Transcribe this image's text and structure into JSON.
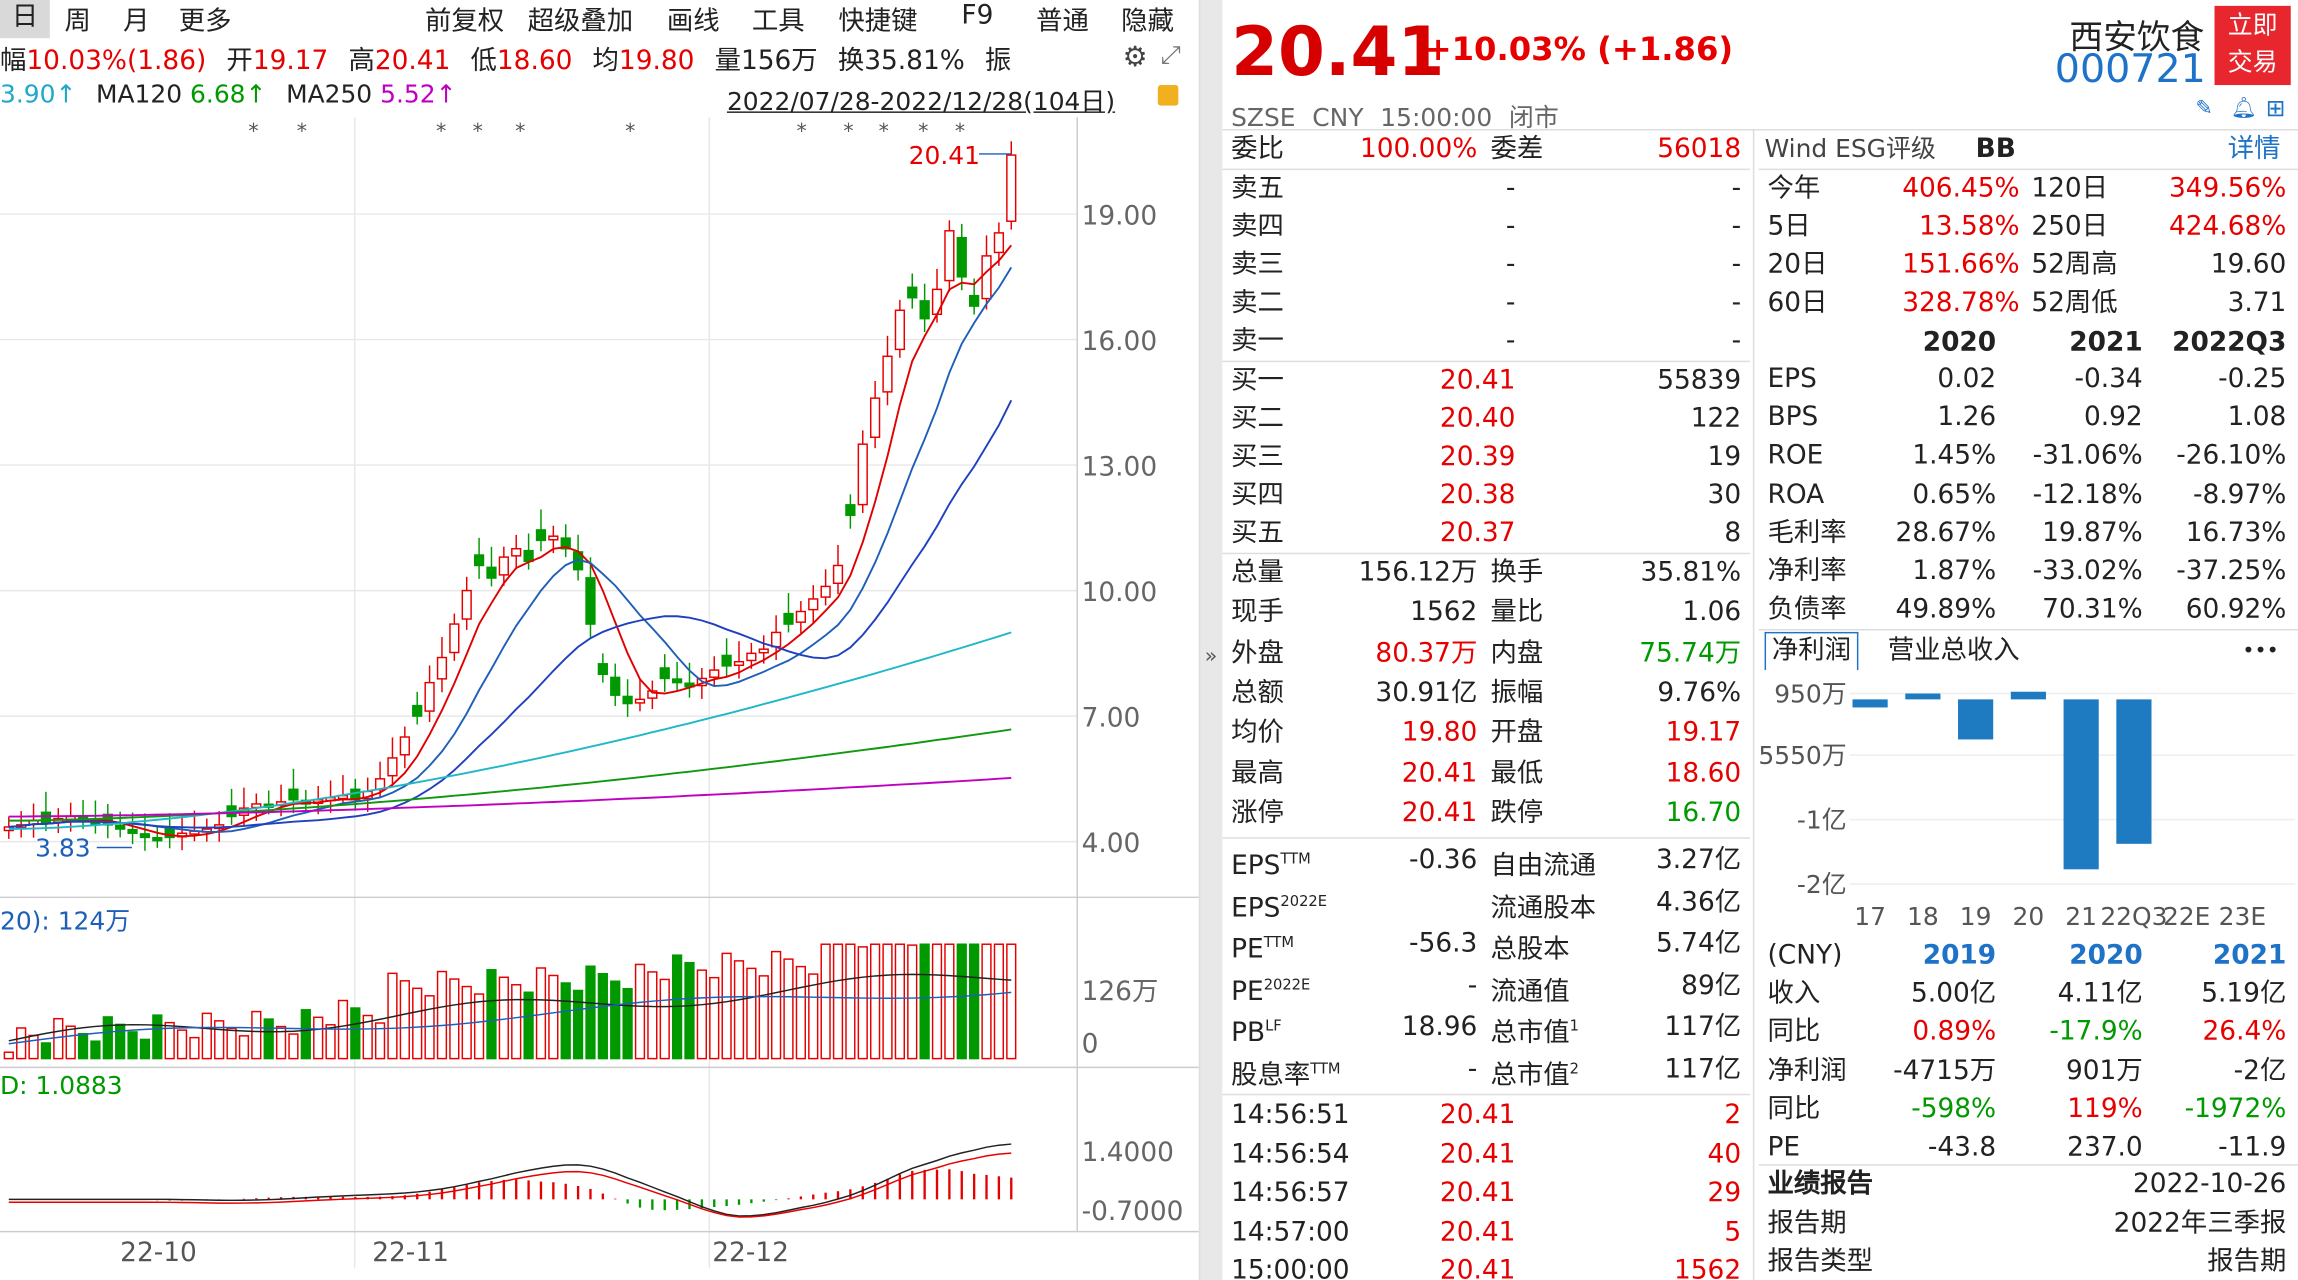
{
  "toolbar": {
    "items": [
      "日",
      "周",
      "月",
      "更多",
      "前复权",
      "超级叠加",
      "画线",
      "工具",
      "快捷键",
      "F9",
      "普通",
      "隐藏"
    ]
  },
  "quote_line": {
    "amp_label": "幅",
    "amp_value": "10.03%(1.86)",
    "open_label": "开",
    "open_value": "19.17",
    "high_label": "高",
    "high_value": "20.41",
    "low_label": "低",
    "low_value": "18.60",
    "avg_label": "均",
    "avg_value": "19.80",
    "vol_label": "量",
    "vol_value": "156万",
    "turn_label": "换",
    "turn_value": "35.81%",
    "extra": "振"
  },
  "ma_line": {
    "ma_a": "3.90↑",
    "ma120_label": "MA120",
    "ma120_value": "6.68↑",
    "ma250_label": "MA250",
    "ma250_value": "5.52↑",
    "range": "2022/07/28-2022/12/28(104日)"
  },
  "chart": {
    "price_ticks": [
      "19.00",
      "16.00",
      "13.00",
      "10.00",
      "7.00",
      "4.00"
    ],
    "high_marker": "20.41",
    "low_marker": "3.83",
    "vol_label": "20): 124万",
    "vol_ticks": [
      "126万",
      "0"
    ],
    "macd_label": "D: 1.0883",
    "macd_ticks": [
      "1.4000",
      "-0.7000"
    ],
    "x_ticks": [
      "22-10",
      "22-11",
      "22-12"
    ]
  },
  "stock": {
    "price": "20.41",
    "change": "+10.03% (+1.86)",
    "name": "西安饮食",
    "code": "000721",
    "trade_button_line1": "立即",
    "trade_button_line2": "交易",
    "exchange": "SZSE",
    "currency": "CNY",
    "time": "15:00:00",
    "status": "闭市"
  },
  "orderbook": {
    "weibi_label": "委比",
    "weibi_value": "100.00%",
    "weicha_label": "委差",
    "weicha_value": "56018",
    "sells": [
      {
        "label": "卖五",
        "price": "-",
        "vol": "-"
      },
      {
        "label": "卖四",
        "price": "-",
        "vol": "-"
      },
      {
        "label": "卖三",
        "price": "-",
        "vol": "-"
      },
      {
        "label": "卖二",
        "price": "-",
        "vol": "-"
      },
      {
        "label": "卖一",
        "price": "-",
        "vol": "-"
      }
    ],
    "buys": [
      {
        "label": "买一",
        "price": "20.41",
        "vol": "55839"
      },
      {
        "label": "买二",
        "price": "20.40",
        "vol": "122"
      },
      {
        "label": "买三",
        "price": "20.39",
        "vol": "19"
      },
      {
        "label": "买四",
        "price": "20.38",
        "vol": "30"
      },
      {
        "label": "买五",
        "price": "20.37",
        "vol": "8"
      }
    ]
  },
  "stats": [
    {
      "l1": "总量",
      "v1": "156.12万",
      "c1": "dk",
      "l2": "换手",
      "v2": "35.81%",
      "c2": "dk"
    },
    {
      "l1": "现手",
      "v1": "1562",
      "c1": "dk",
      "l2": "量比",
      "v2": "1.06",
      "c2": "dk"
    },
    {
      "l1": "外盘",
      "v1": "80.37万",
      "c1": "red",
      "l2": "内盘",
      "v2": "75.74万",
      "c2": "grn"
    },
    {
      "l1": "总额",
      "v1": "30.91亿",
      "c1": "dk",
      "l2": "振幅",
      "v2": "9.76%",
      "c2": "dk"
    },
    {
      "l1": "均价",
      "v1": "19.80",
      "c1": "red",
      "l2": "开盘",
      "v2": "19.17",
      "c2": "red"
    },
    {
      "l1": "最高",
      "v1": "20.41",
      "c1": "red",
      "l2": "最低",
      "v2": "18.60",
      "c2": "red"
    },
    {
      "l1": "涨停",
      "v1": "20.41",
      "c1": "red",
      "l2": "跌停",
      "v2": "16.70",
      "c2": "grn"
    }
  ],
  "fund": [
    {
      "l1": "EPS",
      "sup1": "TTM",
      "v1": "-0.36",
      "l2": "自由流通",
      "sup2": "",
      "v2": "3.27亿"
    },
    {
      "l1": "EPS",
      "sup1": "2022E",
      "v1": "",
      "l2": "流通股本",
      "sup2": "",
      "v2": "4.36亿"
    },
    {
      "l1": "PE",
      "sup1": "TTM",
      "v1": "-56.3",
      "l2": "总股本",
      "sup2": "",
      "v2": "5.74亿"
    },
    {
      "l1": "PE",
      "sup1": "2022E",
      "v1": "-",
      "l2": "流通值",
      "sup2": "",
      "v2": "89亿"
    },
    {
      "l1": "PB",
      "sup1": "LF",
      "v1": "18.96",
      "l2": "总市值",
      "sup2": "1",
      "v2": "117亿"
    },
    {
      "l1": "股息率",
      "sup1": "TTM",
      "v1": "-",
      "l2": "总市值",
      "sup2": "2",
      "v2": "117亿"
    }
  ],
  "ticks": [
    {
      "t": "14:56:51",
      "p": "20.41",
      "v": "2"
    },
    {
      "t": "14:56:54",
      "p": "20.41",
      "v": "40"
    },
    {
      "t": "14:56:57",
      "p": "20.41",
      "v": "29"
    },
    {
      "t": "14:57:00",
      "p": "20.41",
      "v": "5"
    },
    {
      "t": "15:00:00",
      "p": "20.41",
      "v": "1562"
    }
  ],
  "esg": {
    "label": "Wind ESG评级",
    "rating": "BB",
    "detail": "详情"
  },
  "perf": [
    {
      "l1": "今年",
      "v1": "406.45%",
      "l2": "120日",
      "v2": "349.56%"
    },
    {
      "l1": "5日",
      "v1": "13.58%",
      "l2": "250日",
      "v2": "424.68%"
    },
    {
      "l1": "20日",
      "v1": "151.66%",
      "l2": "52周高",
      "v2": "19.60"
    },
    {
      "l1": "60日",
      "v1": "328.78%",
      "l2": "52周低",
      "v2": "3.71"
    }
  ],
  "fin": {
    "years": [
      "2020",
      "2021",
      "2022Q3"
    ],
    "rows": [
      {
        "l": "EPS",
        "v": [
          "0.02",
          "-0.34",
          "-0.25"
        ]
      },
      {
        "l": "BPS",
        "v": [
          "1.26",
          "0.92",
          "1.08"
        ]
      },
      {
        "l": "ROE",
        "v": [
          "1.45%",
          "-31.06%",
          "-26.10%"
        ]
      },
      {
        "l": "ROA",
        "v": [
          "0.65%",
          "-12.18%",
          "-8.97%"
        ]
      },
      {
        "l": "毛利率",
        "v": [
          "28.67%",
          "19.87%",
          "16.73%"
        ]
      },
      {
        "l": "净利率",
        "v": [
          "1.87%",
          "-33.02%",
          "-37.25%"
        ]
      },
      {
        "l": "负债率",
        "v": [
          "49.89%",
          "70.31%",
          "60.92%"
        ]
      }
    ]
  },
  "profit_tabs": {
    "tab1": "净利润",
    "tab2": "营业总收入",
    "more": "•••"
  },
  "chart_data": {
    "type": "bar",
    "title": "",
    "categories": [
      "17",
      "18",
      "19",
      "20",
      "21",
      "22Q3",
      "22E",
      "23E"
    ],
    "y_ticks": [
      "950万",
      "-5550万",
      "-1亿",
      "-2亿"
    ],
    "series": [
      {
        "values": [
          -950,
          500,
          -4715,
          901,
          -20000,
          -17000,
          null,
          null
        ]
      }
    ],
    "unit": "万"
  },
  "rev": {
    "currency": "(CNY)",
    "years": [
      "2019",
      "2020",
      "2021"
    ],
    "rows": [
      {
        "l": "收入",
        "v": [
          "5.00亿",
          "4.11亿",
          "5.19亿"
        ],
        "c": [
          "dk",
          "dk",
          "dk"
        ]
      },
      {
        "l": "同比",
        "v": [
          "0.89%",
          "-17.9%",
          "26.4%"
        ],
        "c": [
          "red",
          "grn",
          "red"
        ]
      },
      {
        "l": "净利润",
        "v": [
          "-4715万",
          "901万",
          "-2亿"
        ],
        "c": [
          "dk",
          "dk",
          "dk"
        ]
      },
      {
        "l": "同比",
        "v": [
          "-598%",
          "119%",
          "-1972%"
        ],
        "c": [
          "grn",
          "red",
          "grn"
        ]
      },
      {
        "l": "PE",
        "v": [
          "-43.8",
          "237.0",
          "-11.9"
        ],
        "c": [
          "dk",
          "dk",
          "dk"
        ]
      }
    ]
  },
  "report": {
    "title": "业绩报告",
    "date": "2022-10-26",
    "period_label": "报告期",
    "period_value": "2022年三季报",
    "type_label": "报告类型",
    "type_value": "报告期"
  }
}
